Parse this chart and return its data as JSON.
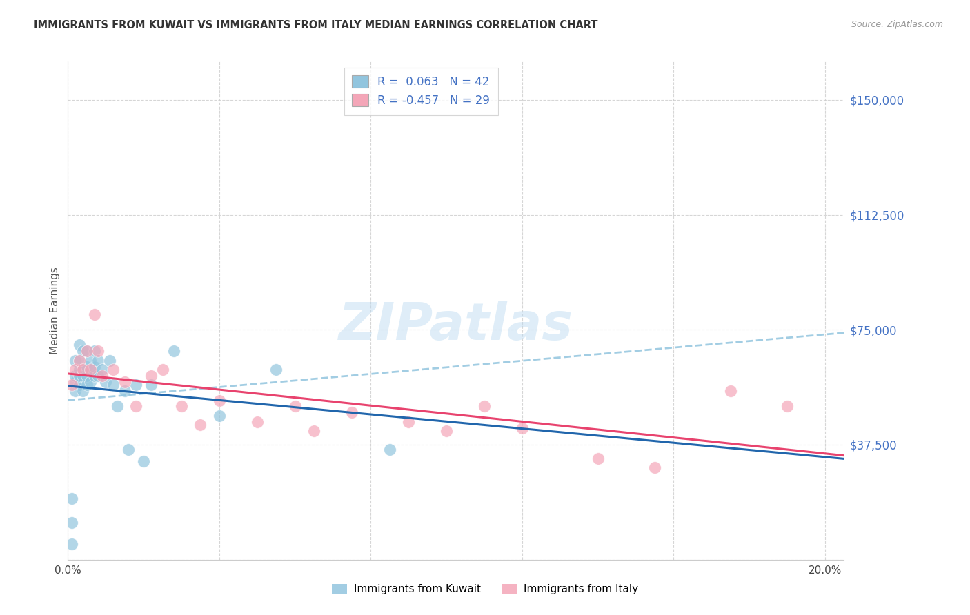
{
  "title": "IMMIGRANTS FROM KUWAIT VS IMMIGRANTS FROM ITALY MEDIAN EARNINGS CORRELATION CHART",
  "source": "Source: ZipAtlas.com",
  "ylabel": "Median Earnings",
  "xlim": [
    0.0,
    0.205
  ],
  "ylim": [
    0,
    162500
  ],
  "yticks": [
    0,
    37500,
    75000,
    112500,
    150000
  ],
  "ytick_labels": [
    "",
    "$37,500",
    "$75,000",
    "$112,500",
    "$150,000"
  ],
  "xticks": [
    0.0,
    0.04,
    0.08,
    0.12,
    0.16,
    0.2
  ],
  "xtick_labels": [
    "0.0%",
    "",
    "",
    "",
    "",
    "20.0%"
  ],
  "watermark": "ZIPatlas",
  "kuwait_color": "#92c5de",
  "italy_color": "#f4a6b8",
  "kuwait_line_color": "#2166ac",
  "italy_line_color": "#e8436e",
  "dashed_line_color": "#92c5de",
  "right_axis_color": "#4472C4",
  "kuwait_R": 0.063,
  "kuwait_N": 42,
  "italy_R": -0.457,
  "italy_N": 29,
  "kuwait_x": [
    0.001,
    0.001,
    0.001,
    0.002,
    0.002,
    0.002,
    0.002,
    0.003,
    0.003,
    0.003,
    0.003,
    0.003,
    0.004,
    0.004,
    0.004,
    0.004,
    0.005,
    0.005,
    0.005,
    0.005,
    0.006,
    0.006,
    0.006,
    0.007,
    0.007,
    0.007,
    0.008,
    0.008,
    0.009,
    0.01,
    0.011,
    0.012,
    0.013,
    0.015,
    0.016,
    0.018,
    0.02,
    0.022,
    0.028,
    0.04,
    0.055,
    0.085
  ],
  "kuwait_y": [
    5000,
    12000,
    20000,
    55000,
    58000,
    60000,
    65000,
    57000,
    60000,
    62000,
    65000,
    70000,
    55000,
    60000,
    62000,
    68000,
    57000,
    60000,
    63000,
    68000,
    58000,
    62000,
    65000,
    60000,
    63000,
    68000,
    60000,
    65000,
    62000,
    58000,
    65000,
    57000,
    50000,
    55000,
    36000,
    57000,
    32000,
    57000,
    68000,
    47000,
    62000,
    36000
  ],
  "italy_x": [
    0.001,
    0.002,
    0.003,
    0.004,
    0.005,
    0.006,
    0.007,
    0.008,
    0.009,
    0.012,
    0.015,
    0.018,
    0.022,
    0.025,
    0.03,
    0.035,
    0.04,
    0.05,
    0.06,
    0.065,
    0.075,
    0.09,
    0.1,
    0.11,
    0.12,
    0.14,
    0.155,
    0.175,
    0.19
  ],
  "italy_y": [
    57000,
    62000,
    65000,
    62000,
    68000,
    62000,
    80000,
    68000,
    60000,
    62000,
    58000,
    50000,
    60000,
    62000,
    50000,
    44000,
    52000,
    45000,
    50000,
    42000,
    48000,
    45000,
    42000,
    50000,
    43000,
    33000,
    30000,
    55000,
    50000
  ]
}
